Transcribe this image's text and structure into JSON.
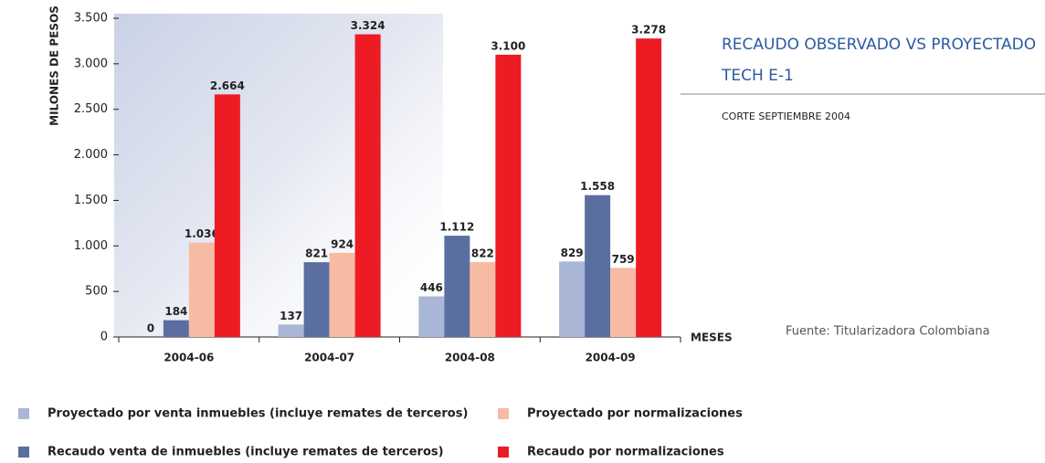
{
  "chart_data": {
    "type": "bar",
    "title": "RECAUDO OBSERVADO VS PROYECTADO TECH E-1",
    "subtitle": "CORTE SEPTIEMBRE 2004",
    "source": "Fuente: Titularizadora Colombiana",
    "y_label": "MILONES DE PESOS",
    "x_label": "MESES",
    "categories": [
      "2004-06",
      "2004-07",
      "2004-08",
      "2004-09"
    ],
    "series": [
      {
        "name": "Proyectado por venta inmuebles (incluye remates de terceros)",
        "color": "#a9b6d6",
        "values": [
          0,
          137,
          446,
          829
        ],
        "value_labels": [
          "0",
          "137",
          "446",
          "829"
        ]
      },
      {
        "name": "Recaudo venta de inmuebles (incluye remates de terceros)",
        "color": "#5a6fa0",
        "values": [
          184,
          821,
          1112,
          1558
        ],
        "value_labels": [
          "184",
          "821",
          "1.112",
          "1.558"
        ]
      },
      {
        "name": "Proyectado por normalizaciones",
        "color": "#f7bba4",
        "values": [
          1036,
          924,
          822,
          759
        ],
        "value_labels": [
          "1.036",
          "924",
          "822",
          "759"
        ]
      },
      {
        "name": "Recaudo por normalizaciones",
        "color": "#ed1c24",
        "values": [
          2664,
          3324,
          3100,
          3278
        ],
        "value_labels": [
          "2.664",
          "3.324",
          "3.100",
          "3.278"
        ]
      }
    ],
    "ylim": [
      0,
      3500
    ],
    "yticks": [
      0,
      500,
      {
        "value": 1000,
        "label": "1.000"
      },
      {
        "value": 1500,
        "label": "1.500"
      },
      {
        "value": 2000,
        "label": "2.000"
      },
      {
        "value": 2500,
        "label": "2.500"
      },
      {
        "value": 3000,
        "label": "3.000"
      },
      {
        "value": 3500,
        "label": "3.500"
      }
    ],
    "grid": false
  }
}
